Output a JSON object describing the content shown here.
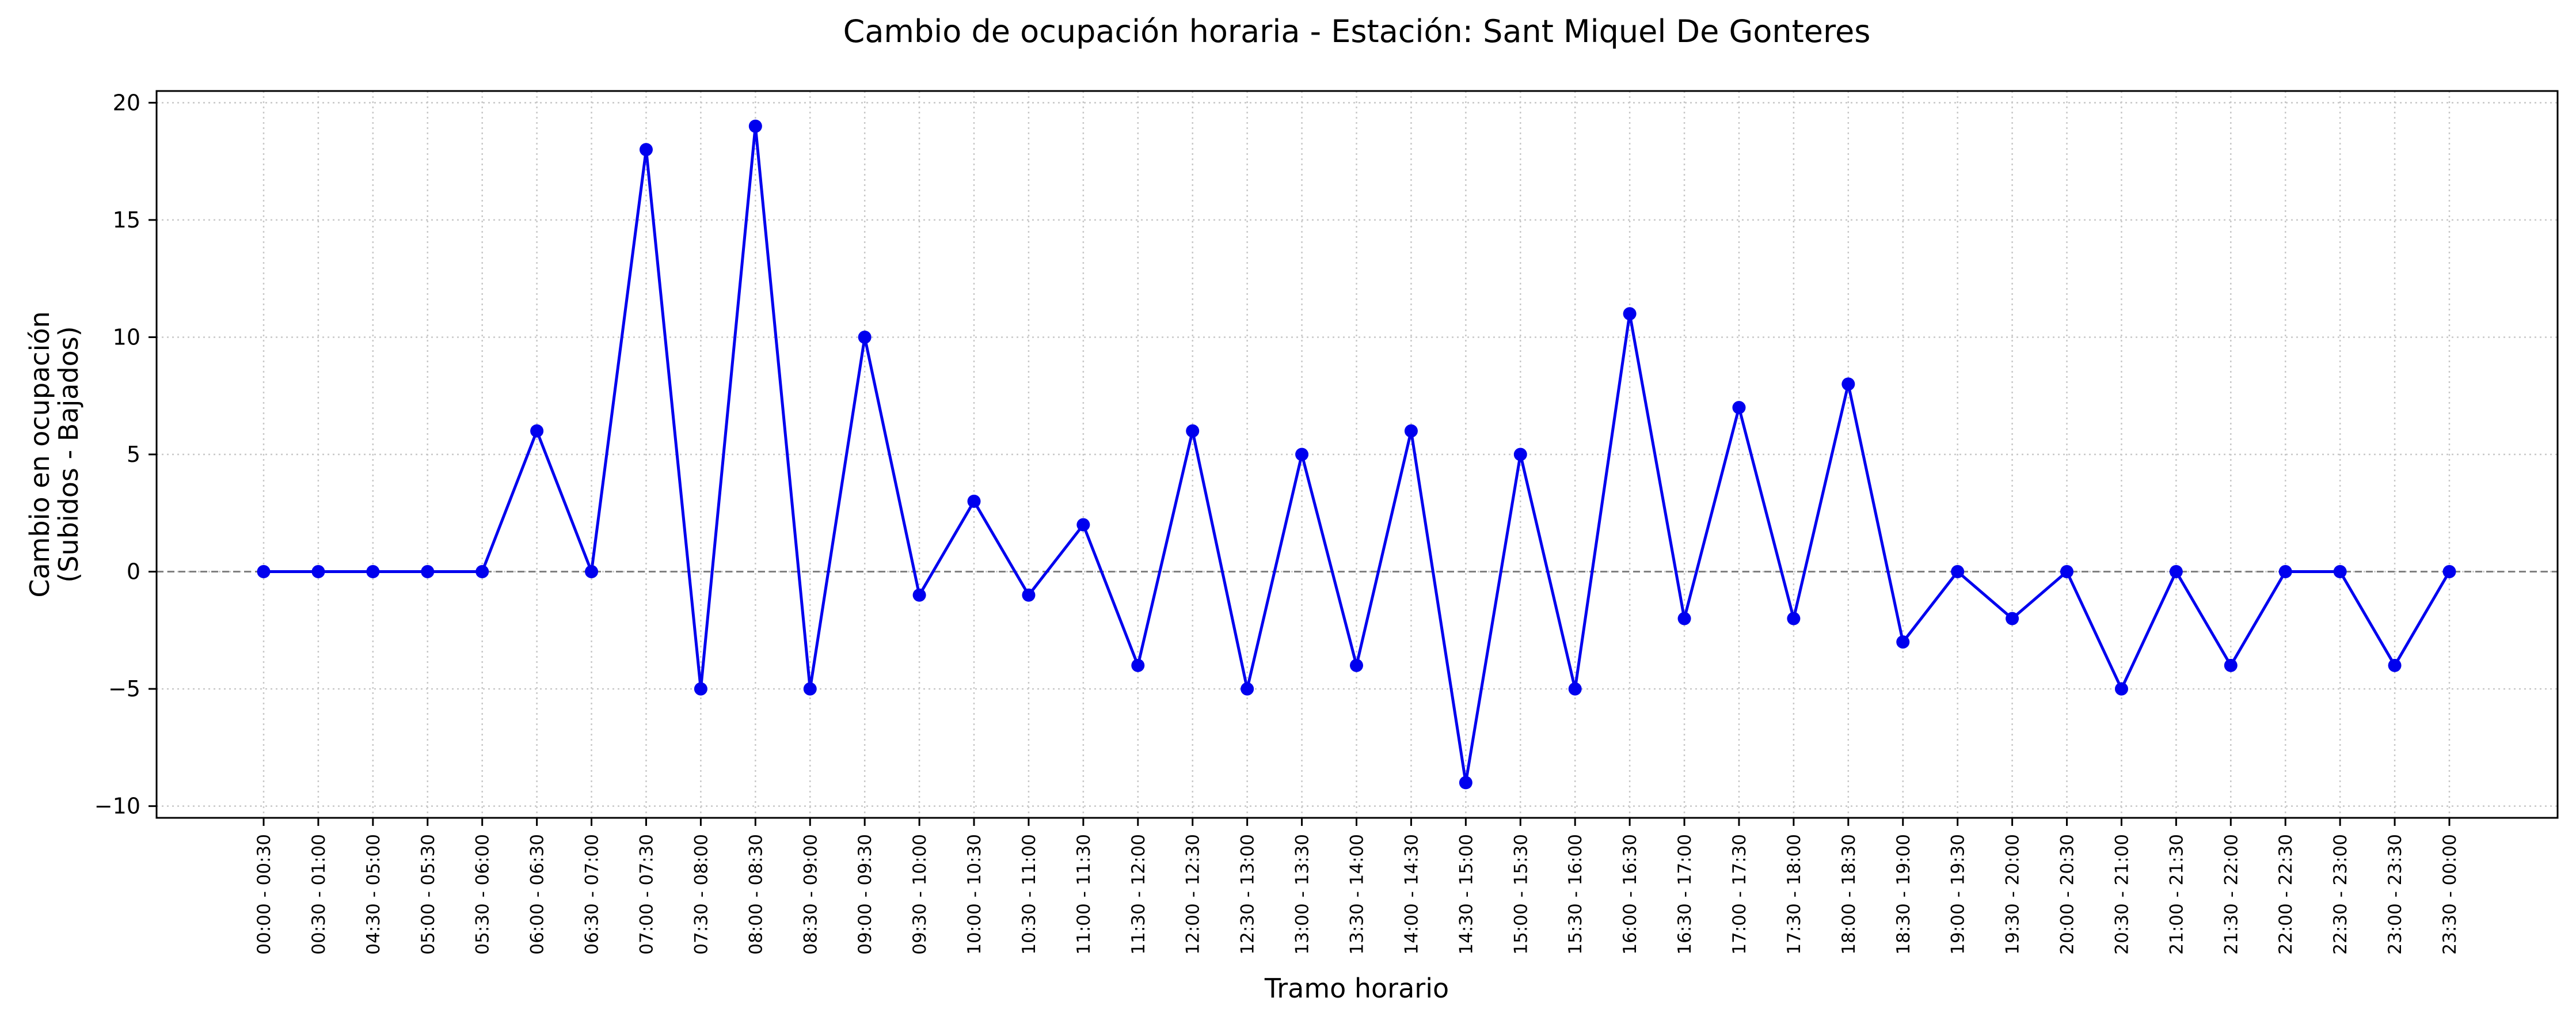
{
  "chart_data": {
    "type": "line",
    "title": "Cambio de ocupación horaria - Estación: Sant Miquel De Gonteres",
    "xlabel": "Tramo horario",
    "ylabel": [
      "Cambio en ocupación",
      "(Subidos - Bajados)"
    ],
    "ylim": [
      -10.5,
      20.5
    ],
    "yticks": [
      -10,
      -5,
      0,
      5,
      10,
      15,
      20
    ],
    "ytick_labels": [
      "−10",
      "−5",
      "0",
      "5",
      "10",
      "15",
      "20"
    ],
    "grid": true,
    "zero_line": true,
    "line_color": "#0000ee",
    "categories": [
      "00:00 - 00:30",
      "00:30 - 01:00",
      "04:30 - 05:00",
      "05:00 - 05:30",
      "05:30 - 06:00",
      "06:00 - 06:30",
      "06:30 - 07:00",
      "07:00 - 07:30",
      "07:30 - 08:00",
      "08:00 - 08:30",
      "08:30 - 09:00",
      "09:00 - 09:30",
      "09:30 - 10:00",
      "10:00 - 10:30",
      "10:30 - 11:00",
      "11:00 - 11:30",
      "11:30 - 12:00",
      "12:00 - 12:30",
      "12:30 - 13:00",
      "13:00 - 13:30",
      "13:30 - 14:00",
      "14:00 - 14:30",
      "14:30 - 15:00",
      "15:00 - 15:30",
      "15:30 - 16:00",
      "16:00 - 16:30",
      "16:30 - 17:00",
      "17:00 - 17:30",
      "17:30 - 18:00",
      "18:00 - 18:30",
      "18:30 - 19:00",
      "19:00 - 19:30",
      "19:30 - 20:00",
      "20:00 - 20:30",
      "20:30 - 21:00",
      "21:00 - 21:30",
      "21:30 - 22:00",
      "22:00 - 22:30",
      "22:30 - 23:00",
      "23:00 - 23:30",
      "23:30 - 00:00"
    ],
    "values": [
      0,
      0,
      0,
      0,
      0,
      6,
      0,
      18,
      -5,
      19,
      -5,
      10,
      -1,
      3,
      -1,
      2,
      -4,
      6,
      -5,
      5,
      -4,
      6,
      -9,
      5,
      -5,
      11,
      -2,
      7,
      -2,
      8,
      -3,
      0,
      -2,
      0,
      -5,
      0,
      -4,
      0,
      0,
      -4,
      0
    ]
  }
}
